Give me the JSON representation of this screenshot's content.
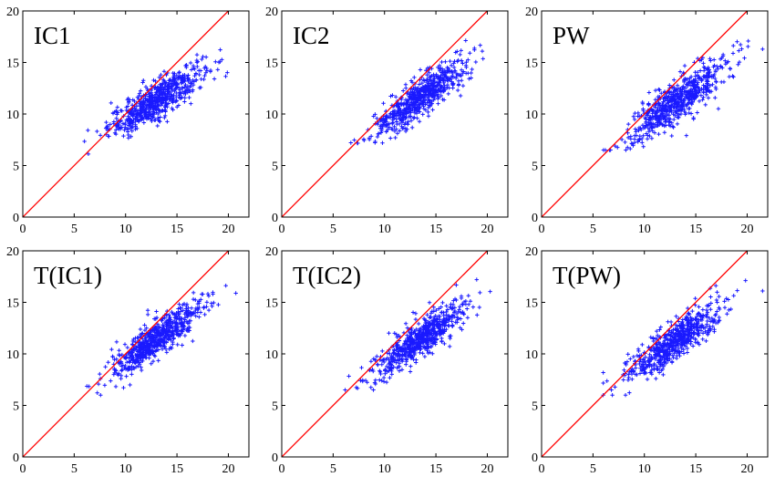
{
  "chart_data": [
    {
      "type": "scatter",
      "title": "IC1",
      "xlim": [
        0,
        22
      ],
      "ylim": [
        0,
        20
      ],
      "xticks": [
        0,
        5,
        10,
        15,
        20
      ],
      "yticks": [
        0,
        5,
        10,
        15,
        20
      ],
      "point_color": "#1a1aff",
      "line_color": "#ff0000",
      "reference_line": {
        "x": [
          0,
          22
        ],
        "y": [
          0,
          22
        ]
      },
      "cloud": {
        "n": 650,
        "x_mean": 13.0,
        "x_sd": 2.3,
        "slope": 0.62,
        "intercept": 3.3,
        "resid_sd": 0.9,
        "x_range": [
          6.0,
          20.5
        ],
        "y_range": [
          5.5,
          17.8
        ]
      }
    },
    {
      "type": "scatter",
      "title": "IC2",
      "xlim": [
        0,
        22
      ],
      "ylim": [
        0,
        20
      ],
      "xticks": [
        0,
        5,
        10,
        15,
        20
      ],
      "yticks": [
        0,
        5,
        10,
        15,
        20
      ],
      "point_color": "#1a1aff",
      "line_color": "#ff0000",
      "reference_line": {
        "x": [
          0,
          22
        ],
        "y": [
          0,
          22
        ]
      },
      "cloud": {
        "n": 650,
        "x_mean": 13.5,
        "x_sd": 2.2,
        "slope": 0.7,
        "intercept": 2.2,
        "resid_sd": 0.9,
        "x_range": [
          6.0,
          21.0
        ],
        "y_range": [
          7.0,
          18.0
        ]
      }
    },
    {
      "type": "scatter",
      "title": "PW",
      "xlim": [
        0,
        22
      ],
      "ylim": [
        0,
        20
      ],
      "xticks": [
        0,
        5,
        10,
        15,
        20
      ],
      "yticks": [
        0,
        5,
        10,
        15,
        20
      ],
      "point_color": "#1a1aff",
      "line_color": "#ff0000",
      "reference_line": {
        "x": [
          0,
          22
        ],
        "y": [
          0,
          22
        ]
      },
      "cloud": {
        "n": 650,
        "x_mean": 13.2,
        "x_sd": 2.3,
        "slope": 0.68,
        "intercept": 2.3,
        "resid_sd": 1.0,
        "x_range": [
          6.0,
          21.5
        ],
        "y_range": [
          6.5,
          18.5
        ]
      }
    },
    {
      "type": "scatter",
      "title": "T(IC1)",
      "xlim": [
        0,
        22
      ],
      "ylim": [
        0,
        20
      ],
      "xticks": [
        0,
        5,
        10,
        15,
        20
      ],
      "yticks": [
        0,
        5,
        10,
        15,
        20
      ],
      "point_color": "#1a1aff",
      "line_color": "#ff0000",
      "reference_line": {
        "x": [
          0,
          22
        ],
        "y": [
          0,
          22
        ]
      },
      "cloud": {
        "n": 650,
        "x_mean": 13.0,
        "x_sd": 2.3,
        "slope": 0.7,
        "intercept": 2.3,
        "resid_sd": 0.9,
        "x_range": [
          6.0,
          21.0
        ],
        "y_range": [
          6.0,
          17.5
        ]
      }
    },
    {
      "type": "scatter",
      "title": "T(IC2)",
      "xlim": [
        0,
        22
      ],
      "ylim": [
        0,
        20
      ],
      "xticks": [
        0,
        5,
        10,
        15,
        20
      ],
      "yticks": [
        0,
        5,
        10,
        15,
        20
      ],
      "point_color": "#1a1aff",
      "line_color": "#ff0000",
      "reference_line": {
        "x": [
          0,
          22
        ],
        "y": [
          0,
          22
        ]
      },
      "cloud": {
        "n": 650,
        "x_mean": 13.5,
        "x_sd": 2.2,
        "slope": 0.7,
        "intercept": 2.0,
        "resid_sd": 0.9,
        "x_range": [
          6.0,
          20.5
        ],
        "y_range": [
          6.5,
          18.0
        ]
      }
    },
    {
      "type": "scatter",
      "title": "T(PW)",
      "xlim": [
        0,
        22
      ],
      "ylim": [
        0,
        20
      ],
      "xticks": [
        0,
        5,
        10,
        15,
        20
      ],
      "yticks": [
        0,
        5,
        10,
        15,
        20
      ],
      "point_color": "#1a1aff",
      "line_color": "#ff0000",
      "reference_line": {
        "x": [
          0,
          22
        ],
        "y": [
          0,
          22
        ]
      },
      "cloud": {
        "n": 650,
        "x_mean": 13.0,
        "x_sd": 2.3,
        "slope": 0.66,
        "intercept": 2.6,
        "resid_sd": 0.95,
        "x_range": [
          6.0,
          21.5
        ],
        "y_range": [
          6.0,
          18.0
        ]
      }
    }
  ]
}
